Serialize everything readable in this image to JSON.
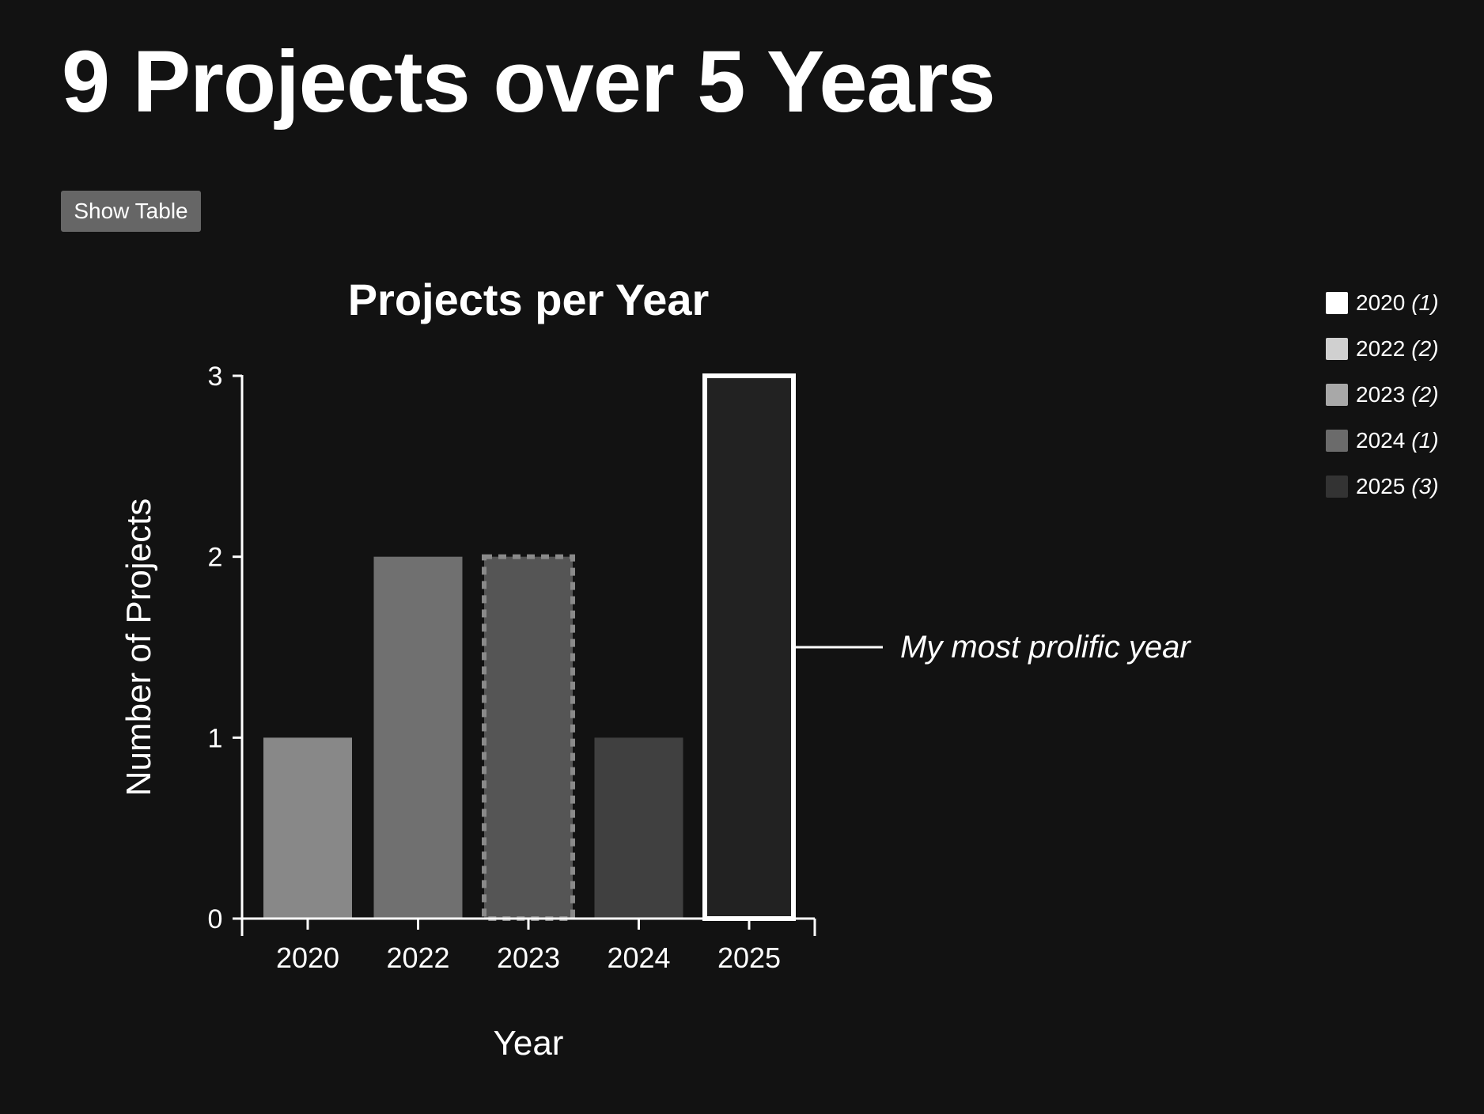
{
  "page": {
    "title": "9 Projects over 5 Years",
    "show_table_label": "Show Table"
  },
  "colors": {
    "background": "#121212",
    "text": "#ffffff",
    "button": "#666666"
  },
  "chart_data": {
    "type": "bar",
    "title": "Projects per Year",
    "xlabel": "Year",
    "ylabel": "Number of Projects",
    "categories": [
      "2020",
      "2022",
      "2023",
      "2024",
      "2025"
    ],
    "values": [
      1,
      2,
      2,
      1,
      3
    ],
    "ylim": [
      0,
      3
    ],
    "yticks": [
      "0",
      "1",
      "2",
      "3"
    ],
    "bar_colors": [
      "#888888",
      "#707070",
      "#555555",
      "#404040",
      "#222222"
    ],
    "bar_styles": [
      "plain",
      "plain",
      "dashed-outline",
      "plain",
      "highlight-outline"
    ],
    "grid": false,
    "annotation": {
      "text": "My most prolific year",
      "category": "2025"
    },
    "legend": {
      "placement": "top-right",
      "items": [
        {
          "label": "2020",
          "count": "(1)",
          "color": "#ffffff"
        },
        {
          "label": "2022",
          "count": "(2)",
          "color": "#d0d0d0"
        },
        {
          "label": "2023",
          "count": "(2)",
          "color": "#a8a8a8"
        },
        {
          "label": "2024",
          "count": "(1)",
          "color": "#6b6b6b"
        },
        {
          "label": "2025",
          "count": "(3)",
          "color": "#333333"
        }
      ]
    }
  }
}
